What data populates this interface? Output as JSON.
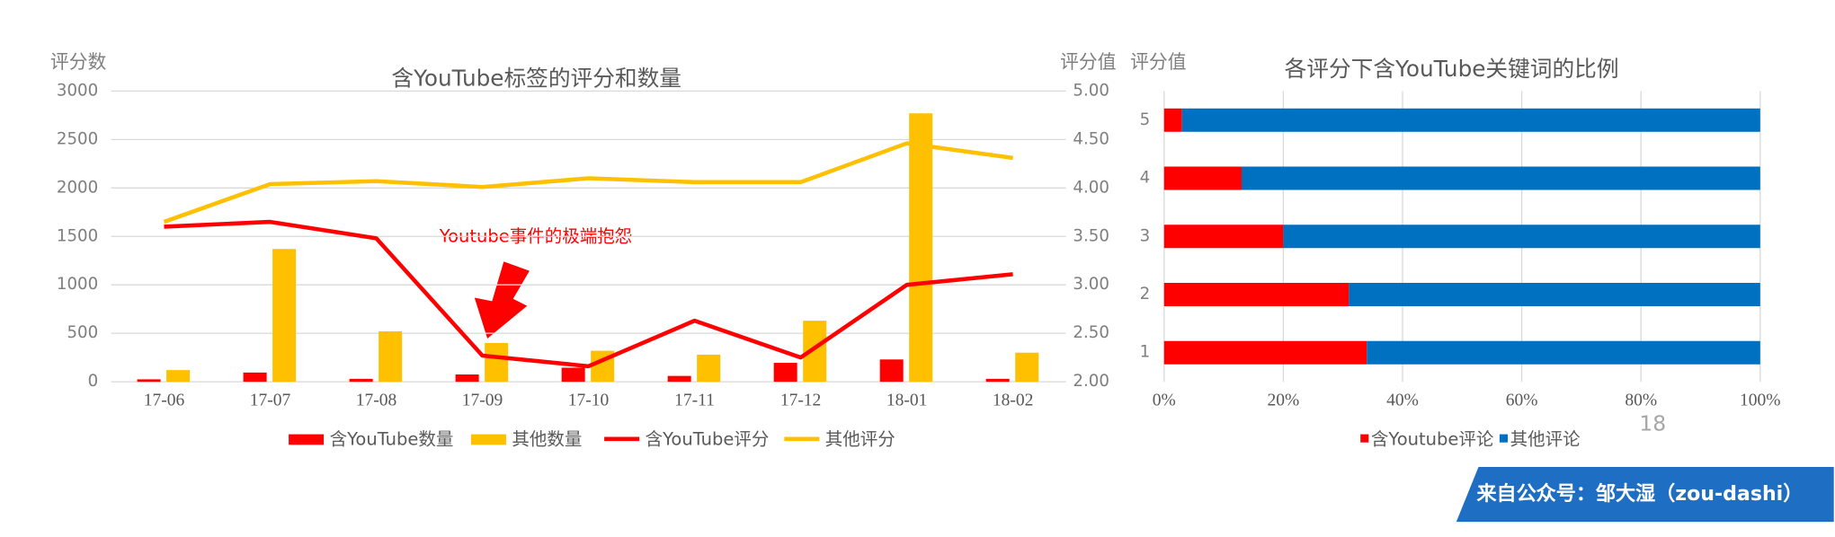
{
  "chart_data": [
    {
      "type": "combo",
      "title": "含YouTube标签的评分和数量",
      "y_label": "评分数",
      "y2_label": "评分值",
      "categories": [
        "17-06",
        "17-07",
        "17-08",
        "17-09",
        "17-10",
        "17-11",
        "17-12",
        "18-01",
        "18-02"
      ],
      "series": [
        {
          "name": "含YouTube数量",
          "type": "bar",
          "color": "#ff0000",
          "values": [
            25,
            95,
            30,
            75,
            145,
            60,
            195,
            230,
            30
          ]
        },
        {
          "name": "其他数量",
          "type": "bar",
          "color": "#ffc000",
          "values": [
            120,
            1370,
            520,
            400,
            320,
            280,
            630,
            2770,
            300
          ]
        },
        {
          "name": "含YouTube评分",
          "type": "line",
          "axis": "y2",
          "color": "#ff0000",
          "values": [
            3.6,
            3.65,
            3.48,
            2.27,
            2.16,
            2.63,
            2.25,
            3.0,
            3.11
          ]
        },
        {
          "name": "其他评分",
          "type": "line",
          "axis": "y2",
          "color": "#ffc000",
          "values": [
            3.65,
            4.04,
            4.07,
            4.01,
            4.1,
            4.06,
            4.06,
            4.46,
            4.31
          ]
        }
      ],
      "ylim": [
        0,
        3000
      ],
      "yticks": [
        0,
        500,
        1000,
        1500,
        2000,
        2500,
        3000
      ],
      "y2lim": [
        2,
        5
      ],
      "y2ticks": [
        {
          "value": 2,
          "label": "2.00"
        },
        {
          "value": 2.5,
          "label": "2.50"
        },
        {
          "value": 3,
          "label": "3.00"
        },
        {
          "value": 3.5,
          "label": "3.50"
        },
        {
          "value": 4,
          "label": "4.00"
        },
        {
          "value": 4.5,
          "label": "4.50"
        },
        {
          "value": 5,
          "label": "5.00"
        }
      ],
      "grid": true,
      "annotation": "Youtube事件的极端抱怨"
    },
    {
      "type": "stacked_bar_h",
      "title": "各评分下含YouTube关键词的比例",
      "y_label": "评分值",
      "categories": [
        "1",
        "2",
        "3",
        "4",
        "5"
      ],
      "series": [
        {
          "name": "含Youtube评论",
          "color": "#ff0000",
          "values": [
            34,
            31,
            20,
            13,
            3
          ]
        },
        {
          "name": "其他评论",
          "color": "#0070c0",
          "values": [
            66,
            69,
            80,
            87,
            97
          ]
        }
      ],
      "xlim": [
        0,
        100
      ],
      "xticks": [
        {
          "value": 0,
          "label": "0%"
        },
        {
          "value": 20,
          "label": "20%"
        },
        {
          "value": 40,
          "label": "40%"
        },
        {
          "value": 60,
          "label": "60%"
        },
        {
          "value": 80,
          "label": "80%"
        },
        {
          "value": 100,
          "label": "100%"
        }
      ],
      "grid": true
    }
  ],
  "page_number": "18",
  "banner": "来自公众号：邹大湿（zou-dashi）"
}
